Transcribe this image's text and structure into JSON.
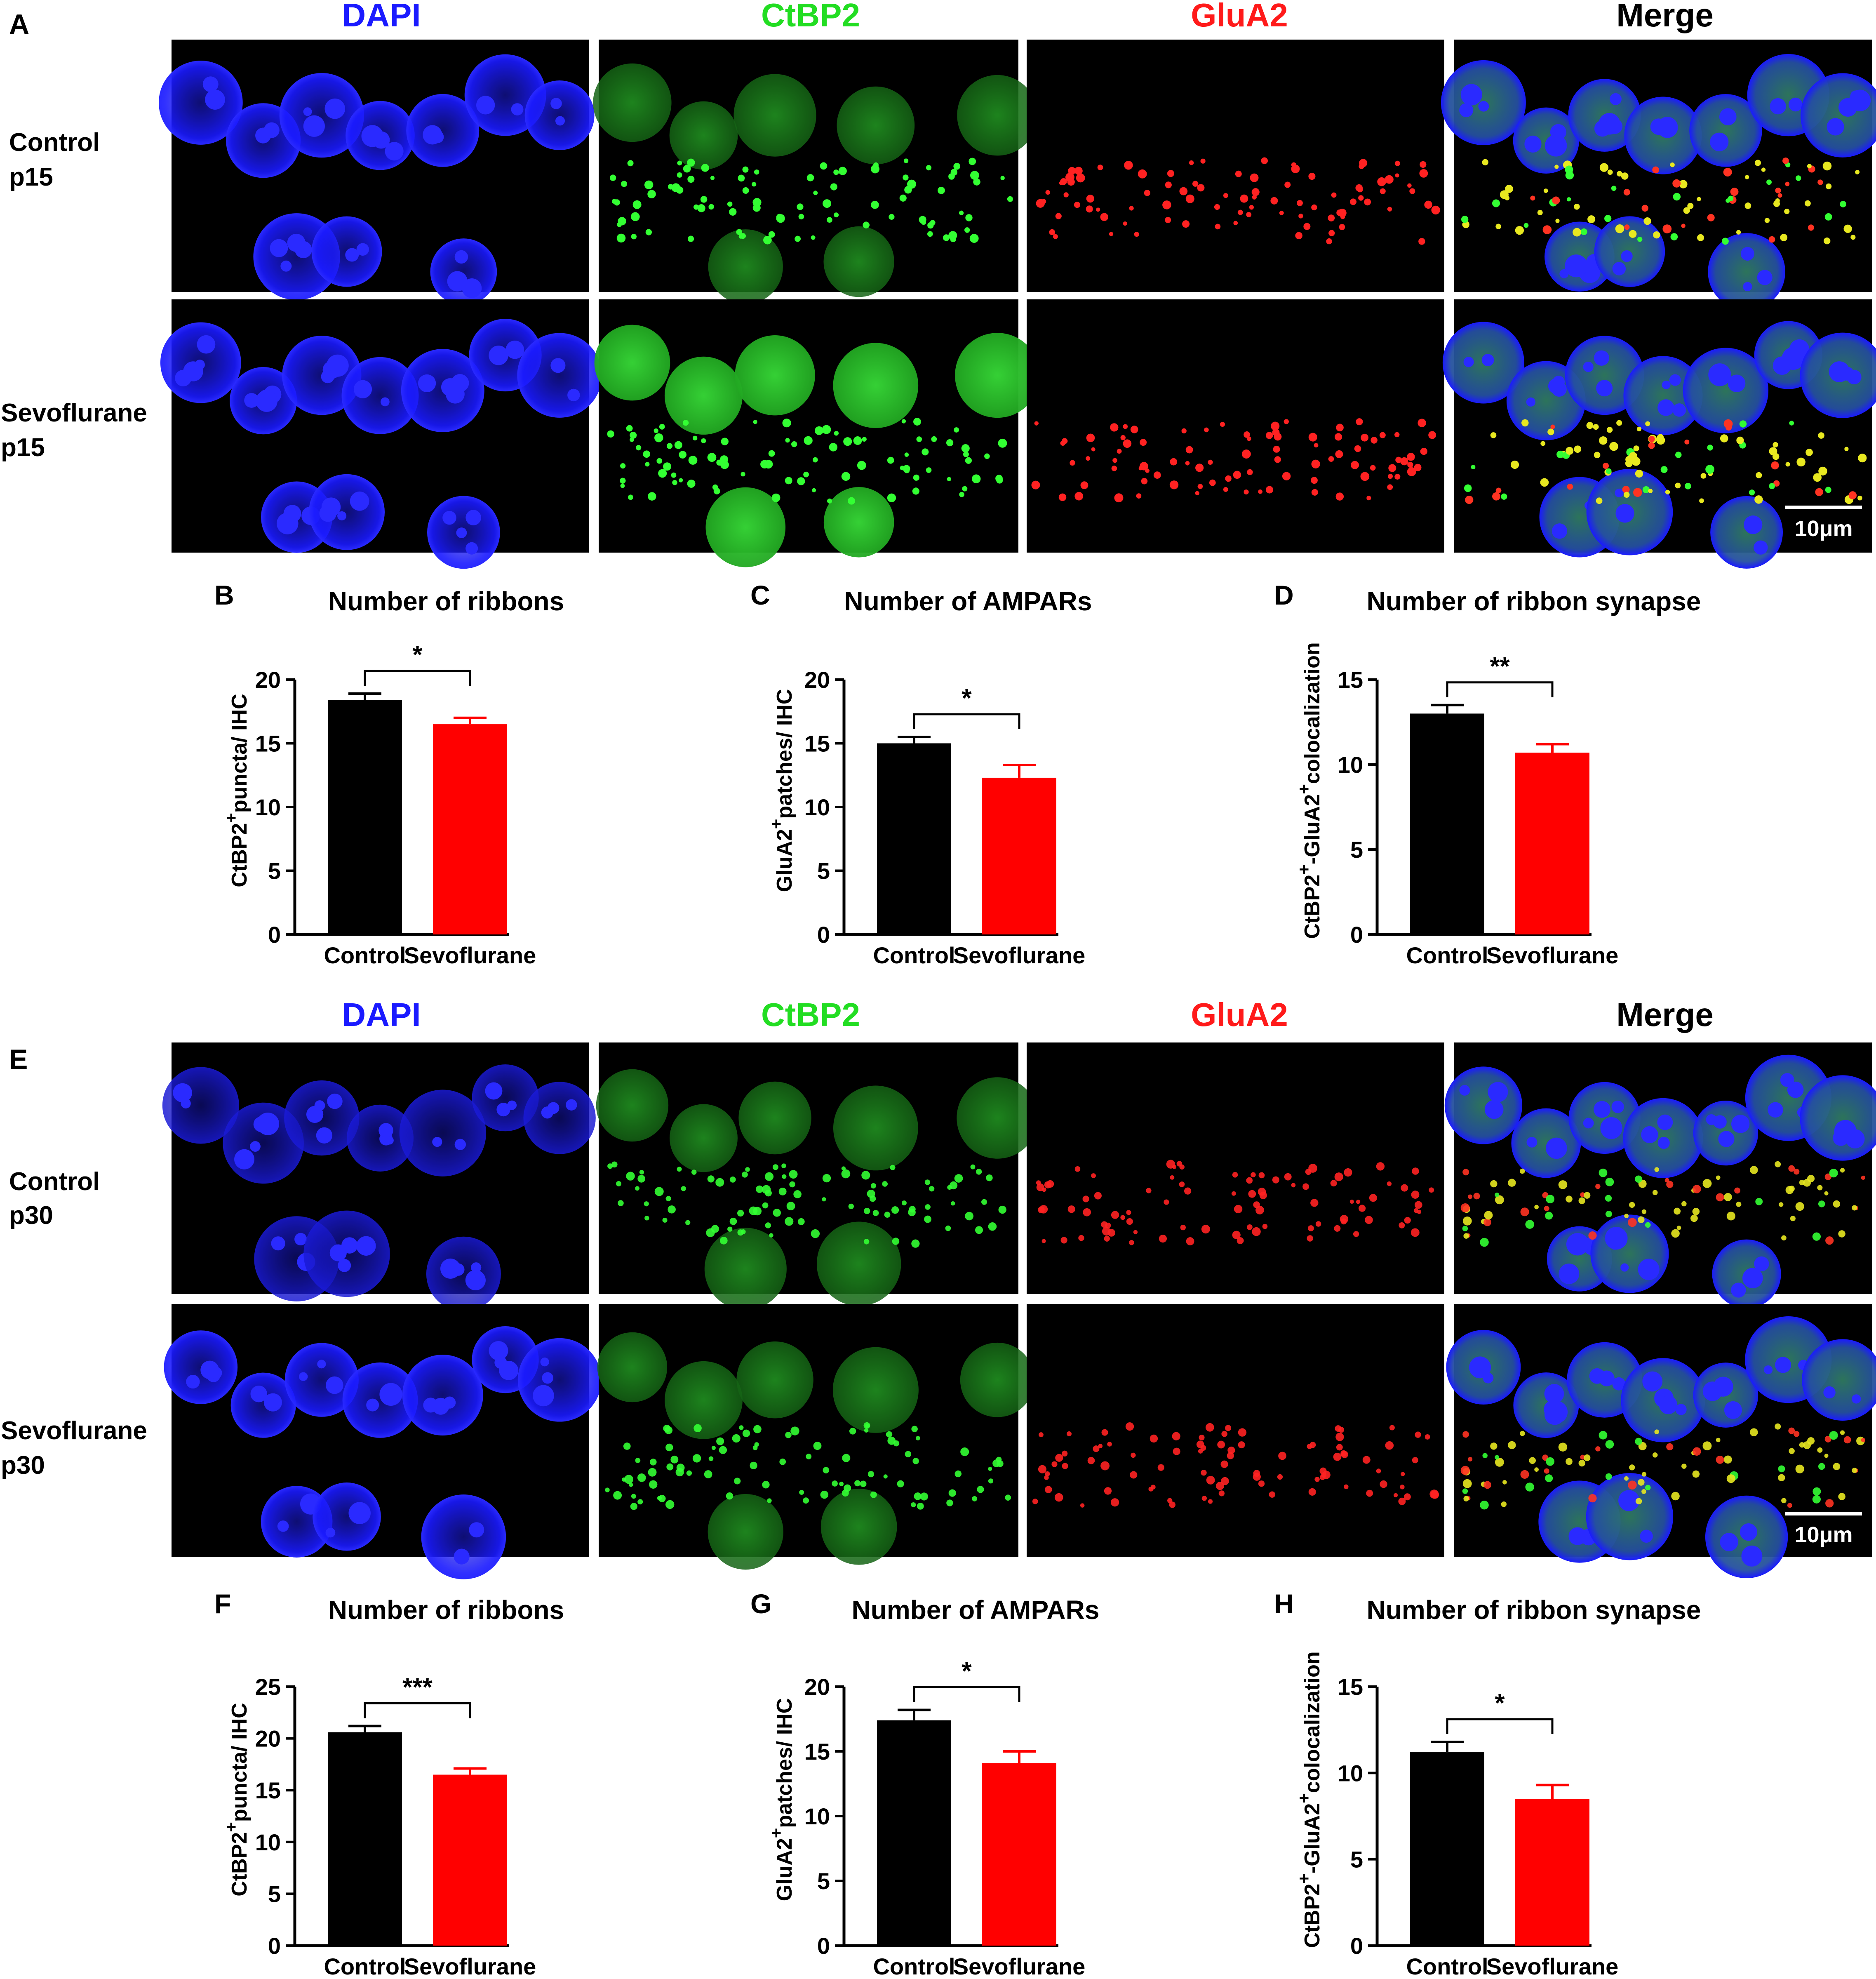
{
  "figure": {
    "panel_letters": {
      "A": "A",
      "E": "E"
    },
    "channel_titles": [
      {
        "label": "DAPI",
        "color": "#1a1aff"
      },
      {
        "label": "CtBP2",
        "color": "#22dd22"
      },
      {
        "label": "GluA2",
        "color": "#ff1a1a"
      },
      {
        "label": "Merge",
        "color": "#000000"
      }
    ],
    "row_labels": {
      "control_p15": [
        "Control",
        "p15"
      ],
      "sevo_p15": [
        "Sevoflurane",
        "p15"
      ],
      "control_p30": [
        "Control",
        "p30"
      ],
      "sevo_p30": [
        "Sevoflurane",
        "p30"
      ]
    },
    "scale_bar": "10μm",
    "colors": {
      "control_bar": "#000000",
      "sevoflurane_bar": "#ff0000",
      "dapi": "#1a1aff",
      "ctbp2": "#22dd22",
      "glua2": "#ff1a1a"
    }
  },
  "chart_data": [
    {
      "panel": "B",
      "type": "bar",
      "title": "Number of ribbons",
      "ylabel_parts": [
        "CtBP2",
        "+",
        "puncta/ IHC"
      ],
      "categories": [
        "Control",
        "Sevoflurane"
      ],
      "values": [
        18.4,
        16.5
      ],
      "errors": [
        0.5,
        0.5
      ],
      "ylim": [
        0,
        20
      ],
      "yticks": [
        "0",
        "5",
        "10",
        "15",
        "20"
      ],
      "significance": "*"
    },
    {
      "panel": "C",
      "type": "bar",
      "title": "Number of AMPARs",
      "ylabel_parts": [
        "GluA2",
        "+",
        "patches/ IHC"
      ],
      "categories": [
        "Control",
        "Sevoflurane"
      ],
      "values": [
        15.0,
        12.3
      ],
      "errors": [
        0.5,
        1.0
      ],
      "ylim": [
        0,
        20
      ],
      "yticks": [
        "0",
        "5",
        "10",
        "15",
        "20"
      ],
      "significance": "*"
    },
    {
      "panel": "D",
      "type": "bar",
      "title": "Number of ribbon synapse",
      "ylabel_parts": [
        "CtBP2",
        "+",
        "-GluA2",
        "+",
        "colocalization"
      ],
      "categories": [
        "Control",
        "Sevoflurane"
      ],
      "values": [
        13.0,
        10.7
      ],
      "errors": [
        0.5,
        0.5
      ],
      "ylim": [
        0,
        15
      ],
      "yticks": [
        "0",
        "5",
        "10",
        "15"
      ],
      "significance": "**"
    },
    {
      "panel": "F",
      "type": "bar",
      "title": "Number of ribbons",
      "ylabel_parts": [
        "CtBP2",
        "+",
        "puncta/ IHC"
      ],
      "categories": [
        "Control",
        "Sevoflurane"
      ],
      "values": [
        20.6,
        16.5
      ],
      "errors": [
        0.6,
        0.6
      ],
      "ylim": [
        0,
        25
      ],
      "yticks": [
        "0",
        "5",
        "10",
        "15",
        "20",
        "25"
      ],
      "significance": "***"
    },
    {
      "panel": "G",
      "type": "bar",
      "title": "Number of AMPARs",
      "ylabel_parts": [
        "GluA2",
        "+",
        "patches/ IHC"
      ],
      "categories": [
        "Control",
        "Sevoflurane"
      ],
      "values": [
        17.4,
        14.1
      ],
      "errors": [
        0.8,
        0.9
      ],
      "ylim": [
        0,
        20
      ],
      "yticks": [
        "0",
        "5",
        "10",
        "15",
        "20"
      ],
      "significance": "*"
    },
    {
      "panel": "H",
      "type": "bar",
      "title": "Number of ribbon synapse",
      "ylabel_parts": [
        "CtBP2",
        "+",
        "-GluA2",
        "+",
        "colocalization"
      ],
      "categories": [
        "Control",
        "Sevoflurane"
      ],
      "values": [
        11.2,
        8.5
      ],
      "errors": [
        0.6,
        0.8
      ],
      "ylim": [
        0,
        15
      ],
      "yticks": [
        "0",
        "5",
        "10",
        "15"
      ],
      "significance": "*"
    }
  ]
}
